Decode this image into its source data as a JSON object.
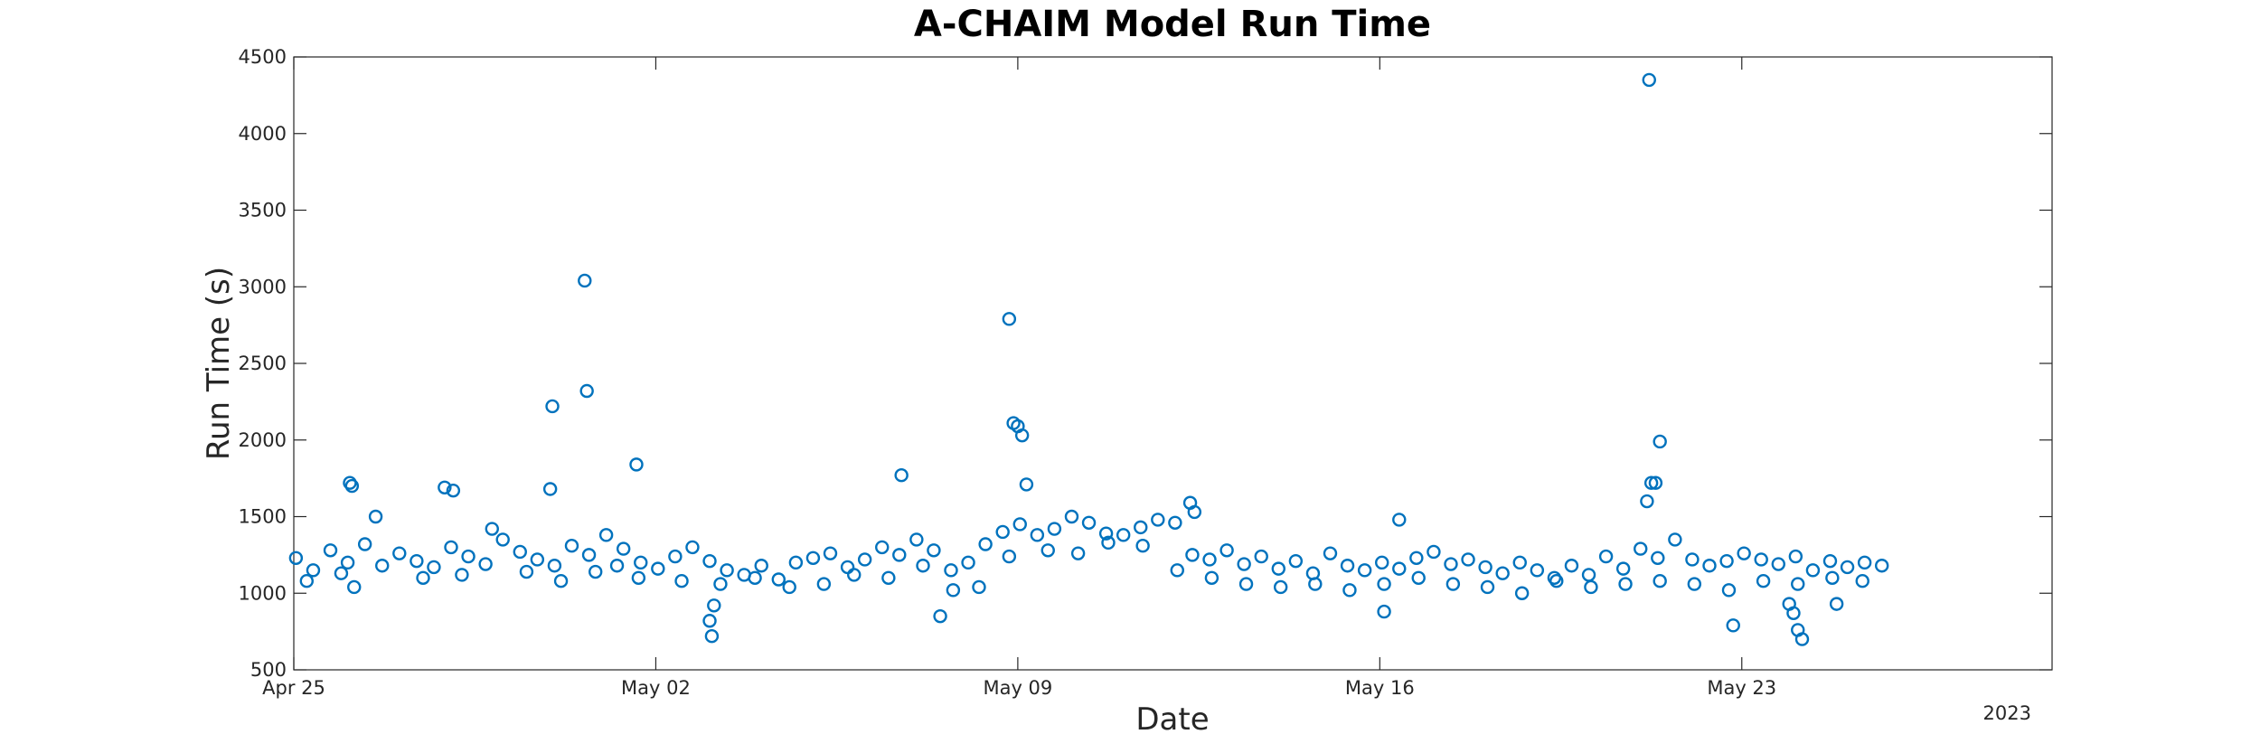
{
  "chart_data": {
    "type": "scatter",
    "title": "A-CHAIM Model Run Time",
    "xlabel": "Date",
    "ylabel": "Run Time (s)",
    "x_type": "date",
    "xlim": [
      "2023-04-25",
      "2023-05-29"
    ],
    "ylim": [
      500,
      4500
    ],
    "yticks": [
      500,
      1000,
      1500,
      2000,
      2500,
      3000,
      3500,
      4000,
      4500
    ],
    "xticks": [
      {
        "date": "2023-04-25",
        "label": "Apr 25"
      },
      {
        "date": "2023-05-02",
        "label": "May 02"
      },
      {
        "date": "2023-05-09",
        "label": "May 09"
      },
      {
        "date": "2023-05-16",
        "label": "May 16"
      },
      {
        "date": "2023-05-23",
        "label": "May 23"
      }
    ],
    "year_label": "2023",
    "grid": false,
    "marker": "open-circle",
    "color": "#0072BD",
    "series": [
      {
        "x": [
          "2023-04-25 01:00",
          "2023-04-25 09:00",
          "2023-04-25 17:00",
          "2023-04-26 01:00",
          "2023-04-26 09:00",
          "2023-04-26 17:00",
          "2023-04-27 01:00",
          "2023-04-27 09:00",
          "2023-04-27 17:00",
          "2023-04-28 01:00",
          "2023-04-28 09:00",
          "2023-04-28 17:00",
          "2023-04-29 01:00",
          "2023-04-29 09:00",
          "2023-04-29 17:00",
          "2023-04-30 01:00",
          "2023-04-30 09:00",
          "2023-04-30 17:00",
          "2023-05-01 01:00",
          "2023-05-01 09:00",
          "2023-05-01 17:00",
          "2023-05-02 01:00",
          "2023-05-02 09:00",
          "2023-05-02 17:00",
          "2023-05-03 01:00",
          "2023-05-03 09:00",
          "2023-05-03 17:00",
          "2023-05-04 01:00",
          "2023-05-04 09:00",
          "2023-05-04 17:00",
          "2023-05-05 01:00",
          "2023-05-05 09:00",
          "2023-05-05 17:00",
          "2023-05-06 01:00",
          "2023-05-06 09:00",
          "2023-05-06 17:00",
          "2023-05-07 01:00",
          "2023-05-07 09:00",
          "2023-05-07 17:00",
          "2023-05-08 01:00",
          "2023-05-08 09:00",
          "2023-05-08 17:00",
          "2023-05-09 01:00",
          "2023-05-09 09:00",
          "2023-05-09 17:00",
          "2023-05-10 01:00",
          "2023-05-10 09:00",
          "2023-05-10 17:00",
          "2023-05-11 01:00",
          "2023-05-11 09:00",
          "2023-05-11 17:00",
          "2023-05-12 01:00",
          "2023-05-12 09:00",
          "2023-05-12 17:00",
          "2023-05-13 01:00",
          "2023-05-13 09:00",
          "2023-05-13 17:00",
          "2023-05-14 01:00",
          "2023-05-14 09:00",
          "2023-05-14 17:00",
          "2023-05-15 01:00",
          "2023-05-15 09:00",
          "2023-05-15 17:00",
          "2023-05-16 01:00",
          "2023-05-16 09:00",
          "2023-05-16 17:00",
          "2023-05-17 01:00",
          "2023-05-17 09:00",
          "2023-05-17 17:00",
          "2023-05-18 01:00",
          "2023-05-18 09:00",
          "2023-05-18 17:00",
          "2023-05-19 01:00",
          "2023-05-19 09:00",
          "2023-05-19 17:00",
          "2023-05-20 01:00",
          "2023-05-20 09:00",
          "2023-05-20 17:00",
          "2023-05-21 01:00",
          "2023-05-21 09:00",
          "2023-05-21 17:00",
          "2023-05-22 01:00",
          "2023-05-22 09:00",
          "2023-05-22 17:00",
          "2023-05-23 01:00",
          "2023-05-23 09:00",
          "2023-05-23 17:00",
          "2023-05-24 01:00",
          "2023-05-24 09:00",
          "2023-05-24 17:00",
          "2023-05-25 01:00",
          "2023-05-25 09:00",
          "2023-05-25 17:00"
        ],
        "y": [
          1230,
          1150,
          1280,
          1200,
          1320,
          1180,
          1260,
          1210,
          1170,
          1300,
          1240,
          1190,
          1350,
          1270,
          1220,
          1180,
          1310,
          1250,
          1380,
          1290,
          1200,
          1160,
          1240,
          1300,
          1210,
          1150,
          1120,
          1180,
          1090,
          1200,
          1230,
          1260,
          1170,
          1220,
          1300,
          1250,
          1350,
          1280,
          1150,
          1200,
          1320,
          1400,
          1450,
          1380,
          1420,
          1500,
          1460,
          1390,
          1380,
          1430,
          1480,
          1460,
          1250,
          1220,
          1280,
          1190,
          1240,
          1160,
          1210,
          1130,
          1260,
          1180,
          1150,
          1200,
          1160,
          1230,
          1270,
          1190,
          1220,
          1170,
          1130,
          1200,
          1150,
          1100,
          1180,
          1120,
          1240,
          1160,
          1290,
          1230,
          1350,
          1220,
          1180,
          1210,
          1260,
          1220,
          1190,
          1240,
          1150,
          1210,
          1170,
          1200,
          1180
        ]
      },
      {
        "x": [
          "2023-04-25 06:00",
          "2023-04-25 22:00",
          "2023-04-26 04:00",
          "2023-04-26 14:00",
          "2023-04-27 12:00",
          "2023-04-28 06:00",
          "2023-04-28 20:00",
          "2023-04-29 12:00",
          "2023-04-30 04:00",
          "2023-04-30 20:00",
          "2023-05-01 06:00",
          "2023-05-01 16:00",
          "2023-05-02 12:00",
          "2023-05-03 06:00",
          "2023-05-03 22:00",
          "2023-05-04 14:00",
          "2023-05-05 06:00",
          "2023-05-05 20:00",
          "2023-05-06 12:00",
          "2023-05-07 04:00",
          "2023-05-07 18:00",
          "2023-05-08 06:00",
          "2023-05-08 20:00",
          "2023-05-09 14:00",
          "2023-05-10 04:00",
          "2023-05-10 18:00",
          "2023-05-11 10:00",
          "2023-05-12 02:00",
          "2023-05-12 18:00",
          "2023-05-13 10:00",
          "2023-05-14 02:00",
          "2023-05-14 18:00",
          "2023-05-15 10:00",
          "2023-05-16 02:00",
          "2023-05-16 18:00",
          "2023-05-17 10:00",
          "2023-05-18 02:00",
          "2023-05-18 18:00",
          "2023-05-19 10:00",
          "2023-05-20 02:00",
          "2023-05-20 18:00",
          "2023-05-21 10:00",
          "2023-05-22 02:00",
          "2023-05-22 18:00",
          "2023-05-23 10:00",
          "2023-05-24 02:00",
          "2023-05-24 18:00",
          "2023-05-25 08:00"
        ],
        "y": [
          1080,
          1130,
          1040,
          1500,
          1100,
          1120,
          1420,
          1140,
          1080,
          1140,
          1180,
          1100,
          1080,
          1060,
          1100,
          1040,
          1060,
          1120,
          1100,
          1180,
          1020,
          1040,
          1240,
          1280,
          1260,
          1330,
          1310,
          1150,
          1100,
          1060,
          1040,
          1060,
          1020,
          1060,
          1100,
          1060,
          1040,
          1000,
          1080,
          1040,
          1060,
          1080,
          1060,
          1020,
          1080,
          1060,
          1100,
          1080
        ]
      },
      {
        "x": [
          "2023-04-26 02:00",
          "2023-04-26 03:00",
          "2023-04-27 22:00",
          "2023-04-28 02:00",
          "2023-04-29 23:00",
          "2023-04-30 00:00",
          "2023-04-30 15:00",
          "2023-04-30 16:00",
          "2023-05-01 15:00",
          "2023-05-03 01:00",
          "2023-05-03 02:00",
          "2023-05-03 03:00",
          "2023-05-06 18:00",
          "2023-05-07 12:00",
          "2023-05-08 20:00",
          "2023-05-08 22:00",
          "2023-05-09 00:00",
          "2023-05-09 02:00",
          "2023-05-09 04:00",
          "2023-05-12 08:00",
          "2023-05-12 10:00",
          "2023-05-16 02:00",
          "2023-05-16 09:00",
          "2023-05-21 04:00",
          "2023-05-21 05:00",
          "2023-05-21 06:00",
          "2023-05-21 08:00",
          "2023-05-21 10:00",
          "2023-05-22 20:00",
          "2023-05-23 22:00",
          "2023-05-24 00:00",
          "2023-05-24 02:00",
          "2023-05-24 04:00",
          "2023-05-24 20:00"
        ],
        "y": [
          1720,
          1700,
          1690,
          1670,
          1680,
          2220,
          3040,
          2320,
          1840,
          820,
          720,
          920,
          1770,
          850,
          2790,
          2110,
          2090,
          2030,
          1710,
          1590,
          1530,
          880,
          1480,
          1600,
          4350,
          1720,
          1720,
          1990,
          790,
          930,
          870,
          760,
          700,
          930
        ]
      }
    ]
  }
}
